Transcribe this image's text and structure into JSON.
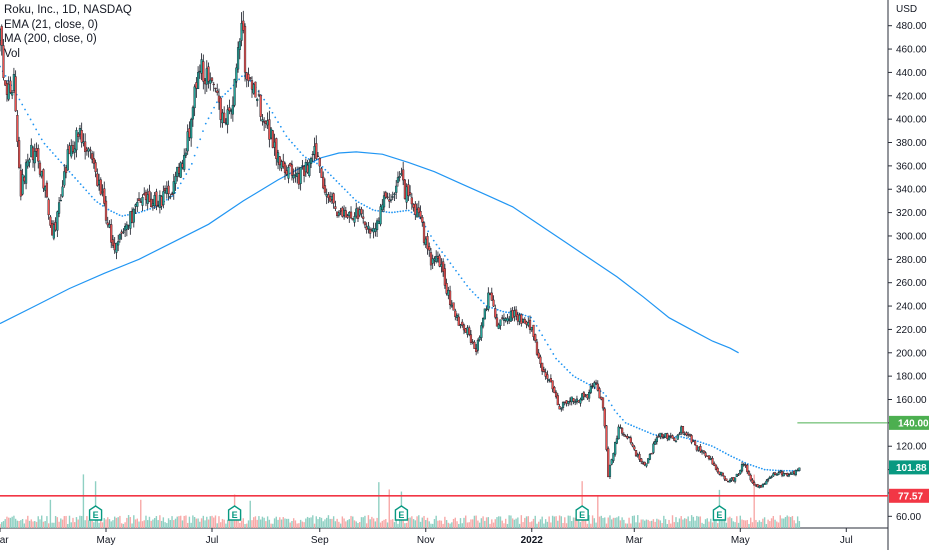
{
  "chart_data": {
    "type": "candlestick",
    "title": "Roku, Inc., 1D, NASDAQ",
    "currency": "USD",
    "indicators": [
      {
        "name": "EMA (21, close, 0)",
        "style": "dotted",
        "color": "#2196f3"
      },
      {
        "name": "MA (200, close, 0)",
        "style": "solid",
        "color": "#2196f3"
      },
      {
        "name": "Vol"
      }
    ],
    "y_ticks": [
      60,
      80,
      100,
      120,
      140,
      160,
      180,
      200,
      220,
      240,
      260,
      280,
      300,
      320,
      340,
      360,
      380,
      400,
      420,
      440,
      460,
      480
    ],
    "y_tick_labels": [
      "60.00",
      "80.00",
      "100.00",
      "120.00",
      "140.00",
      "160.00",
      "180.00",
      "200.00",
      "220.00",
      "240.00",
      "260.00",
      "280.00",
      "300.00",
      "320.00",
      "340.00",
      "360.00",
      "380.00",
      "400.00",
      "420.00",
      "440.00",
      "460.00",
      "480.00"
    ],
    "ylim": [
      50,
      502
    ],
    "x_labels": [
      {
        "label": "Mar",
        "day": 0
      },
      {
        "label": "May",
        "day": 61
      },
      {
        "label": "Jul",
        "day": 122
      },
      {
        "label": "Sep",
        "day": 184
      },
      {
        "label": "Nov",
        "day": 245
      },
      {
        "label": "2022",
        "day": 306
      },
      {
        "label": "Mar",
        "day": 365
      },
      {
        "label": "May",
        "day": 426
      },
      {
        "label": "Jul",
        "day": 487
      }
    ],
    "xlim": [
      0,
      511
    ],
    "price_path": [
      [
        0,
        470
      ],
      [
        3,
        420
      ],
      [
        8,
        435
      ],
      [
        12,
        340
      ],
      [
        18,
        375
      ],
      [
        24,
        355
      ],
      [
        30,
        300
      ],
      [
        35,
        330
      ],
      [
        40,
        375
      ],
      [
        46,
        390
      ],
      [
        52,
        365
      ],
      [
        58,
        340
      ],
      [
        63,
        305
      ],
      [
        66,
        285
      ],
      [
        70,
        300
      ],
      [
        78,
        325
      ],
      [
        86,
        330
      ],
      [
        94,
        332
      ],
      [
        100,
        345
      ],
      [
        106,
        365
      ],
      [
        112,
        420
      ],
      [
        116,
        445
      ],
      [
        122,
        425
      ],
      [
        128,
        405
      ],
      [
        132,
        400
      ],
      [
        136,
        440
      ],
      [
        139,
        485
      ],
      [
        142,
        430
      ],
      [
        146,
        430
      ],
      [
        150,
        410
      ],
      [
        155,
        390
      ],
      [
        160,
        370
      ],
      [
        166,
        355
      ],
      [
        172,
        350
      ],
      [
        178,
        360
      ],
      [
        182,
        372
      ],
      [
        186,
        345
      ],
      [
        190,
        335
      ],
      [
        195,
        320
      ],
      [
        200,
        315
      ],
      [
        205,
        320
      ],
      [
        210,
        310
      ],
      [
        215,
        305
      ],
      [
        220,
        325
      ],
      [
        226,
        338
      ],
      [
        230,
        350
      ],
      [
        234,
        335
      ],
      [
        240,
        320
      ],
      [
        244,
        300
      ],
      [
        248,
        280
      ],
      [
        254,
        275
      ],
      [
        258,
        250
      ],
      [
        262,
        230
      ],
      [
        266,
        225
      ],
      [
        270,
        215
      ],
      [
        274,
        205
      ],
      [
        278,
        225
      ],
      [
        282,
        255
      ],
      [
        286,
        225
      ],
      [
        290,
        230
      ],
      [
        296,
        235
      ],
      [
        302,
        225
      ],
      [
        306,
        220
      ],
      [
        310,
        195
      ],
      [
        314,
        180
      ],
      [
        318,
        170
      ],
      [
        322,
        155
      ],
      [
        326,
        158
      ],
      [
        332,
        160
      ],
      [
        338,
        165
      ],
      [
        342,
        175
      ],
      [
        346,
        160
      ],
      [
        348,
        140
      ],
      [
        350,
        95
      ],
      [
        352,
        110
      ],
      [
        356,
        135
      ],
      [
        360,
        130
      ],
      [
        364,
        120
      ],
      [
        368,
        108
      ],
      [
        372,
        105
      ],
      [
        376,
        120
      ],
      [
        380,
        130
      ],
      [
        384,
        128
      ],
      [
        388,
        125
      ],
      [
        392,
        135
      ],
      [
        396,
        130
      ],
      [
        400,
        120
      ],
      [
        404,
        115
      ],
      [
        408,
        110
      ],
      [
        412,
        100
      ],
      [
        416,
        95
      ],
      [
        420,
        90
      ],
      [
        424,
        95
      ],
      [
        428,
        105
      ],
      [
        432,
        92
      ],
      [
        436,
        85
      ],
      [
        440,
        88
      ],
      [
        444,
        95
      ],
      [
        448,
        98
      ],
      [
        452,
        95
      ],
      [
        456,
        97
      ],
      [
        460,
        102
      ]
    ],
    "ema21_path": [
      [
        0,
        445
      ],
      [
        10,
        420
      ],
      [
        25,
        380
      ],
      [
        40,
        355
      ],
      [
        55,
        330
      ],
      [
        63,
        322
      ],
      [
        70,
        317
      ],
      [
        80,
        320
      ],
      [
        90,
        325
      ],
      [
        100,
        335
      ],
      [
        110,
        360
      ],
      [
        118,
        395
      ],
      [
        125,
        415
      ],
      [
        132,
        425
      ],
      [
        140,
        438
      ],
      [
        146,
        430
      ],
      [
        155,
        410
      ],
      [
        165,
        385
      ],
      [
        175,
        368
      ],
      [
        185,
        360
      ],
      [
        195,
        345
      ],
      [
        205,
        330
      ],
      [
        215,
        322
      ],
      [
        225,
        320
      ],
      [
        235,
        322
      ],
      [
        242,
        315
      ],
      [
        250,
        295
      ],
      [
        260,
        275
      ],
      [
        270,
        255
      ],
      [
        280,
        240
      ],
      [
        290,
        235
      ],
      [
        300,
        233
      ],
      [
        306,
        230
      ],
      [
        312,
        215
      ],
      [
        320,
        195
      ],
      [
        330,
        180
      ],
      [
        340,
        172
      ],
      [
        348,
        165
      ],
      [
        354,
        150
      ],
      [
        360,
        140
      ],
      [
        368,
        135
      ],
      [
        376,
        130
      ],
      [
        384,
        128
      ],
      [
        392,
        128
      ],
      [
        400,
        125
      ],
      [
        410,
        120
      ],
      [
        420,
        112
      ],
      [
        430,
        105
      ],
      [
        440,
        100
      ],
      [
        450,
        99
      ],
      [
        460,
        99
      ]
    ],
    "ma200_path": [
      [
        0,
        225
      ],
      [
        20,
        240
      ],
      [
        40,
        255
      ],
      [
        60,
        268
      ],
      [
        80,
        280
      ],
      [
        100,
        295
      ],
      [
        120,
        310
      ],
      [
        140,
        330
      ],
      [
        160,
        348
      ],
      [
        175,
        360
      ],
      [
        185,
        367
      ],
      [
        195,
        371
      ],
      [
        205,
        372
      ],
      [
        220,
        370
      ],
      [
        235,
        363
      ],
      [
        250,
        355
      ],
      [
        265,
        345
      ],
      [
        280,
        335
      ],
      [
        295,
        325
      ],
      [
        310,
        310
      ],
      [
        325,
        295
      ],
      [
        340,
        280
      ],
      [
        355,
        265
      ],
      [
        370,
        248
      ],
      [
        385,
        230
      ],
      [
        400,
        218
      ],
      [
        410,
        210
      ],
      [
        420,
        204
      ],
      [
        425,
        200
      ]
    ],
    "earnings_days": [
      55,
      135,
      231,
      335,
      414
    ],
    "earnings_label": "E",
    "horizontal_levels": [
      {
        "value": 140.0,
        "label": "140.00",
        "color": "#4caf50"
      },
      {
        "value": 77.57,
        "label": "77.57",
        "color": "#f23645"
      }
    ],
    "last_price": {
      "value": 101.88,
      "label": "101.88",
      "color": "#089981"
    }
  }
}
